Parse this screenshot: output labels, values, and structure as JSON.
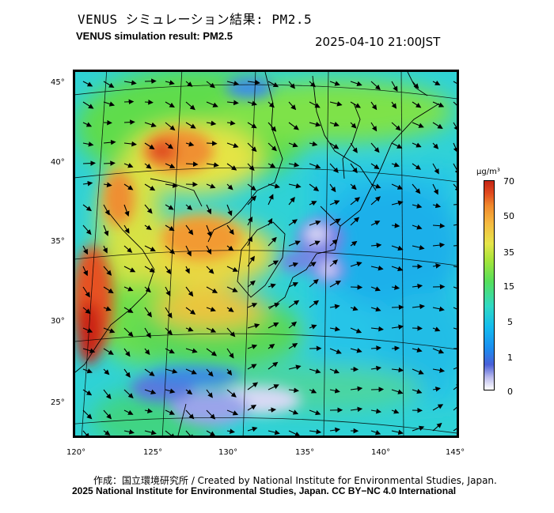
{
  "header": {
    "title_jp": "VENUS シミュレーション結果: PM2.5",
    "title_en": "VENUS simulation result: PM2.5",
    "timestamp": "2025-04-10 21:00JST"
  },
  "map": {
    "lat_ticks": [
      "45°",
      "40°",
      "35°",
      "30°",
      "25°"
    ],
    "lon_ticks": [
      "120°",
      "125°",
      "130°",
      "135°",
      "140°",
      "145°"
    ]
  },
  "colorbar": {
    "unit": "μg/m³",
    "labels": [
      "70",
      "50",
      "35",
      "15",
      "5",
      "1",
      "0"
    ]
  },
  "credits": {
    "line1": "作成：国立環境研究所 / Created by National Institute for Environmental Studies, Japan.",
    "line2": "2025 National Institute for Environmental Studies, Japan. CC BY−NC 4.0 International"
  }
}
